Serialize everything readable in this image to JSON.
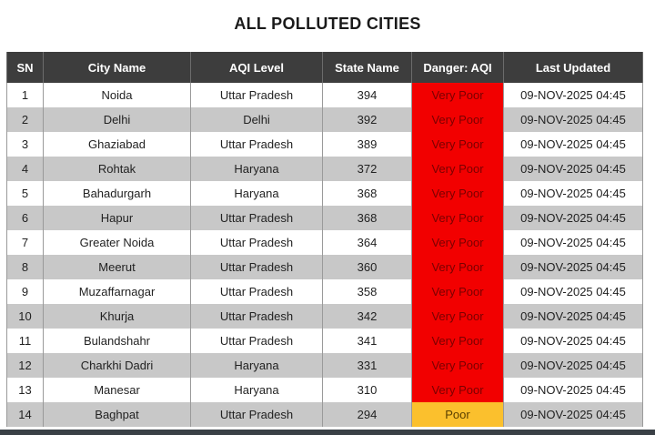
{
  "title": "ALL POLLUTED CITIES",
  "columns": [
    "SN",
    "City Name",
    "AQI Level",
    "State Name",
    "Danger: AQI",
    "Last Updated"
  ],
  "rows": [
    {
      "sn": "1",
      "city": "Noida",
      "aqi_level": "Uttar Pradesh",
      "state_name": "394",
      "danger": "Very Poor",
      "updated": "09-NOV-2025 04:45"
    },
    {
      "sn": "2",
      "city": "Delhi",
      "aqi_level": "Delhi",
      "state_name": "392",
      "danger": "Very Poor",
      "updated": "09-NOV-2025 04:45"
    },
    {
      "sn": "3",
      "city": "Ghaziabad",
      "aqi_level": "Uttar Pradesh",
      "state_name": "389",
      "danger": "Very Poor",
      "updated": "09-NOV-2025 04:45"
    },
    {
      "sn": "4",
      "city": "Rohtak",
      "aqi_level": "Haryana",
      "state_name": "372",
      "danger": "Very Poor",
      "updated": "09-NOV-2025 04:45"
    },
    {
      "sn": "5",
      "city": "Bahadurgarh",
      "aqi_level": "Haryana",
      "state_name": "368",
      "danger": "Very Poor",
      "updated": "09-NOV-2025 04:45"
    },
    {
      "sn": "6",
      "city": "Hapur",
      "aqi_level": "Uttar Pradesh",
      "state_name": "368",
      "danger": "Very Poor",
      "updated": "09-NOV-2025 04:45"
    },
    {
      "sn": "7",
      "city": "Greater Noida",
      "aqi_level": "Uttar Pradesh",
      "state_name": "364",
      "danger": "Very Poor",
      "updated": "09-NOV-2025 04:45"
    },
    {
      "sn": "8",
      "city": "Meerut",
      "aqi_level": "Uttar Pradesh",
      "state_name": "360",
      "danger": "Very Poor",
      "updated": "09-NOV-2025 04:45"
    },
    {
      "sn": "9",
      "city": "Muzaffarnagar",
      "aqi_level": "Uttar Pradesh",
      "state_name": "358",
      "danger": "Very Poor",
      "updated": "09-NOV-2025 04:45"
    },
    {
      "sn": "10",
      "city": "Khurja",
      "aqi_level": "Uttar Pradesh",
      "state_name": "342",
      "danger": "Very Poor",
      "updated": "09-NOV-2025 04:45"
    },
    {
      "sn": "11",
      "city": "Bulandshahr",
      "aqi_level": "Uttar Pradesh",
      "state_name": "341",
      "danger": "Very Poor",
      "updated": "09-NOV-2025 04:45"
    },
    {
      "sn": "12",
      "city": "Charkhi Dadri",
      "aqi_level": "Haryana",
      "state_name": "331",
      "danger": "Very Poor",
      "updated": "09-NOV-2025 04:45"
    },
    {
      "sn": "13",
      "city": "Manesar",
      "aqi_level": "Haryana",
      "state_name": "310",
      "danger": "Very Poor",
      "updated": "09-NOV-2025 04:45"
    },
    {
      "sn": "14",
      "city": "Baghpat",
      "aqi_level": "Uttar Pradesh",
      "state_name": "294",
      "danger": "Poor",
      "updated": "09-NOV-2025 04:45"
    }
  ],
  "colors": {
    "header_bg": "#3d3d3d",
    "stripe": "#c8c8c8",
    "very_poor": "#f20000",
    "poor": "#fbc02d"
  }
}
